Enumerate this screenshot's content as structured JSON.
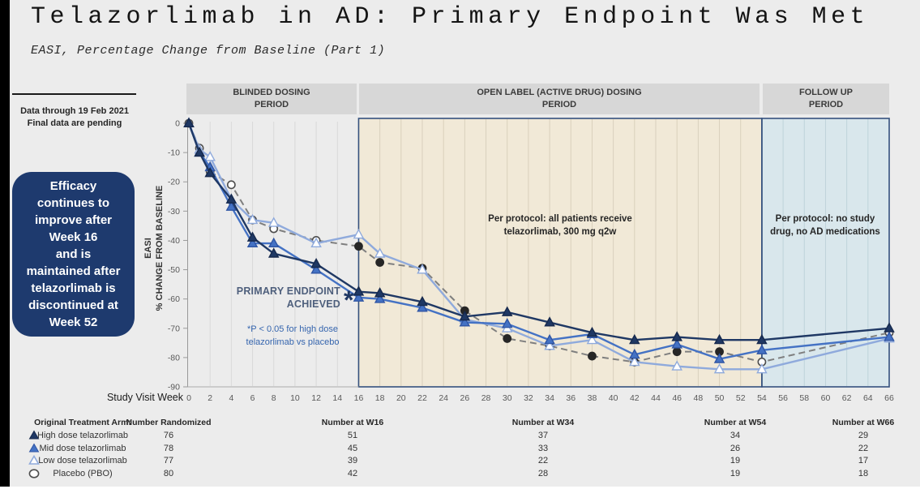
{
  "slide": {
    "title": "Telazorlimab in AD: Primary Endpoint Was Met",
    "subtitle": "EASI, Percentage Change from Baseline (Part 1)",
    "data_note": "Data through 19 Feb 2021\nFinal data are pending",
    "callout_text": "Efficacy\ncontinues to\nimprove after\nWeek 16\nand is\nmaintained after\ntelazorlimab is\ndiscontinued at\nWeek 52"
  },
  "periods": [
    {
      "label": "BLINDED DOSING\nPERIOD"
    },
    {
      "label": "OPEN LABEL (ACTIVE DRUG) DOSING\nPERIOD"
    },
    {
      "label": "FOLLOW UP\nPERIOD"
    }
  ],
  "annotations": {
    "primary_endpoint": "PRIMARY ENDPOINT\nACHIEVED",
    "asterisk": "*",
    "pvalue_note": "*P < 0.05 for high dose\ntelazorlimab vs placebo",
    "open_label_note": "Per protocol: all patients receive\ntelazorlimab, 300 mg q2w",
    "follow_up_note": "Per protocol: no study\ndrug, no AD medications"
  },
  "chart_data": {
    "type": "line",
    "xlabel": "Study Visit Week",
    "ylabel_lines": [
      "EASI",
      "% CHANGE FROM BASELINE"
    ],
    "x_min": 0,
    "x_max": 66,
    "x_tick_step": 2,
    "y_ticks": [
      0,
      -10,
      -20,
      -30,
      -40,
      -50,
      -60,
      -70,
      -80,
      -90
    ],
    "ylim": [
      -90,
      0
    ],
    "grid": "vertical-only",
    "x": [
      0,
      1,
      2,
      4,
      6,
      8,
      12,
      16,
      18,
      22,
      26,
      30,
      34,
      38,
      42,
      46,
      50,
      54,
      66
    ],
    "series": [
      {
        "name": "High dose telazorlimab",
        "color": "#1f3864",
        "line": "solid",
        "marker": "triangle",
        "marker_fill": "#1f3864",
        "marker_stroke": "#16294d",
        "values": [
          0,
          -10,
          -17,
          -26,
          -39,
          -44.5,
          -48,
          -57.5,
          -58,
          -61,
          -66,
          -64.5,
          -68,
          -71.5,
          -74,
          -73,
          -74,
          -74,
          -70
        ]
      },
      {
        "name": "Mid dose telazorlimab",
        "color": "#4472c4",
        "line": "solid",
        "marker": "triangle",
        "marker_fill": "#4472c4",
        "marker_stroke": "#2f55a4",
        "values": [
          0,
          -10,
          -15,
          -28.5,
          -41,
          -41,
          -50,
          -59.5,
          -60,
          -63,
          -68,
          -68.5,
          -74,
          -72,
          -79,
          -75.5,
          -80.5,
          -77.5,
          -73
        ]
      },
      {
        "name": "Low dose telazorlimab",
        "color": "#8faadc",
        "line": "solid",
        "marker": "triangle",
        "marker_fill": "#ffffff",
        "marker_stroke": "#8faadc",
        "values": [
          0,
          -9,
          -11.5,
          -26,
          -33,
          -34,
          -41,
          -38,
          -44.5,
          -50,
          -67,
          -70,
          -76,
          -74,
          -81.5,
          -83,
          -84,
          -84,
          -73.5
        ]
      },
      {
        "name": "Placebo (PBO)",
        "color": "#7f7f7f",
        "line": "dashed",
        "marker": "circle",
        "marker_fill": "#ffffff",
        "marker_stroke": "#4d4d4d",
        "marker_fill_filled": "#262626",
        "point_markers": [
          "open",
          "open",
          "open",
          "open",
          "open",
          "open",
          "open",
          "filled",
          "filled",
          "filled",
          "filled",
          "filled",
          "filled",
          "filled",
          "filled",
          "filled",
          "filled",
          "open",
          "open"
        ],
        "values": [
          0,
          -8.5,
          -16.5,
          -21,
          -33,
          -36,
          -40,
          -42,
          -47.5,
          -49.5,
          -64,
          -73.5,
          -76,
          -79.5,
          -81.5,
          -78,
          -78,
          -81.5,
          -71.5
        ]
      }
    ],
    "regions": [
      {
        "name": "blinded",
        "from_week": 0,
        "to_week": 16,
        "color": "transparent"
      },
      {
        "name": "open_label",
        "from_week": 16,
        "to_week": 54,
        "color": "#f1e9d7",
        "border": "#35517e"
      },
      {
        "name": "follow_up",
        "from_week": 54,
        "to_week": 66,
        "color": "#d9e7ec",
        "border": "#35517e"
      }
    ]
  },
  "table": {
    "arm_header": "Original Treatment Arm:",
    "value_headers": [
      "Number Randomized",
      "Number at W16",
      "Number at W34",
      "Number at W54",
      "Number at W66"
    ],
    "rows": [
      {
        "arm": "High dose telazorlimab",
        "marker": "triangle-dark-icon",
        "values": [
          76,
          51,
          37,
          34,
          29
        ]
      },
      {
        "arm": "Mid dose telazorlimab",
        "marker": "triangle-mid-icon",
        "values": [
          78,
          45,
          33,
          26,
          22
        ]
      },
      {
        "arm": "Low dose telazorlimab",
        "marker": "triangle-open-icon",
        "values": [
          77,
          39,
          22,
          19,
          17
        ]
      },
      {
        "arm": "Placebo (PBO)",
        "marker": "circle-open-icon",
        "values": [
          80,
          42,
          28,
          19,
          18
        ]
      }
    ]
  },
  "colors": {
    "slide_bg": "#ececec",
    "callout_bg": "#1e3a6e",
    "period_header_bg": "#d7d7d7",
    "open_label_bg": "#f1e9d7",
    "follow_up_bg": "#d9e7ec",
    "region_border": "#35517e",
    "high_dose": "#1f3864",
    "mid_dose": "#4472c4",
    "low_dose": "#8faadc",
    "placebo": "#7f7f7f",
    "placebo_filled_marker": "#262626"
  }
}
